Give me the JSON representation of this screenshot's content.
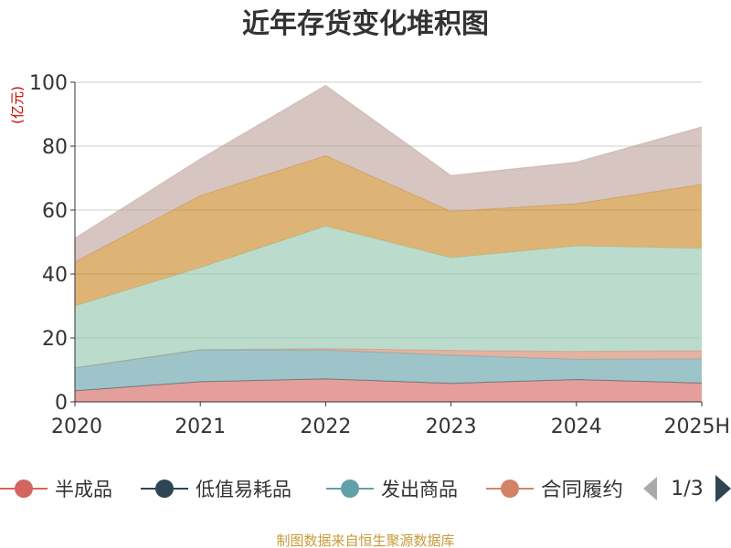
{
  "chart_data": {
    "type": "area",
    "title": "近年存货变化堆积图",
    "ylabel": "(亿元)",
    "xlabel": "",
    "ylim": [
      0,
      100
    ],
    "yticks": [
      0,
      20,
      40,
      60,
      80,
      100
    ],
    "categories": [
      "2020",
      "2021",
      "2022",
      "2023",
      "2024",
      "2025H"
    ],
    "stacked": true,
    "grid": true,
    "series": [
      {
        "name": "半成品",
        "color": "#d4645f",
        "values": [
          3.5,
          6.3,
          7.2,
          5.8,
          7.0,
          5.9
        ]
      },
      {
        "name": "低值易耗品",
        "color": "#2f4554",
        "values": [
          0,
          0,
          0,
          0,
          0,
          0
        ]
      },
      {
        "name": "发出商品",
        "color": "#61a0a8",
        "values": [
          7.2,
          10.0,
          9.0,
          8.8,
          6.3,
          7.6
        ]
      },
      {
        "name": "合同履约",
        "color": "#d48265",
        "values": [
          0,
          0,
          0.5,
          1.5,
          2.5,
          2.5
        ]
      },
      {
        "name": "",
        "color": "#91c7ae",
        "values": [
          19.3,
          25.7,
          38.3,
          29.0,
          33.0,
          32.0
        ]
      },
      {
        "name": "",
        "color": "#ca8622",
        "values": [
          13.7,
          22.5,
          22.0,
          14.5,
          13.2,
          20.0
        ]
      },
      {
        "name": "",
        "color": "#bda29a",
        "values": [
          7.5,
          11.5,
          22.0,
          11.2,
          13.0,
          18.0
        ]
      }
    ],
    "legend": {
      "visible_items": [
        "半成品",
        "低值易耗品",
        "发出商品",
        "合同履约"
      ],
      "page": "1/3",
      "placement": "bottom"
    }
  },
  "source_note": "制图数据来自恒生聚源数据库"
}
